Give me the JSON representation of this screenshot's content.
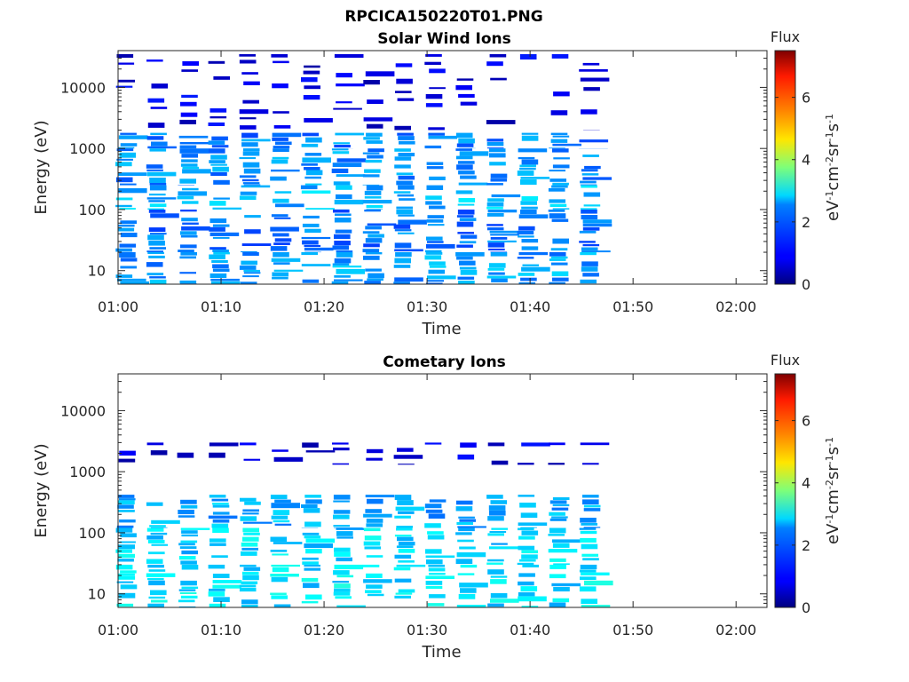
{
  "figure": {
    "title": "RPCICA150220T01.PNG"
  },
  "chart_data": [
    {
      "type": "heatmap",
      "title": "Solar Wind Ions",
      "xlabel": "Time",
      "ylabel": "Energy (eV)",
      "x_ticks": [
        "01:00",
        "01:10",
        "01:20",
        "01:30",
        "01:40",
        "01:50",
        "02:00"
      ],
      "y_ticks": [
        "10",
        "100",
        "1000",
        "10000"
      ],
      "y_scale": "log",
      "ylim": [
        6,
        40000
      ],
      "xlim_minutes": [
        0,
        63
      ],
      "colorbar": {
        "title": "Flux",
        "label": "eV-1cm-2sr-1s-1",
        "ticks": [
          "0",
          "2",
          "4",
          "6"
        ],
        "range": [
          0,
          7.5
        ],
        "colormap": "jet"
      },
      "grid": false,
      "sweep_times_minutes": [
        0.8,
        3.8,
        6.8,
        9.8,
        12.8,
        15.8,
        18.8,
        21.8,
        24.8,
        27.8,
        30.8,
        33.8,
        36.8,
        39.8,
        42.8,
        45.8
      ],
      "sweep_width_minutes": 1.6,
      "data_end_minutes": 46,
      "flux_profile": [
        [
          35000,
          2000,
          0.7
        ],
        [
          1800,
          1000,
          1.9
        ],
        [
          1000,
          250,
          2.0
        ],
        [
          250,
          100,
          2.3
        ],
        [
          100,
          20,
          1.8
        ],
        [
          20,
          6,
          2.1
        ]
      ]
    },
    {
      "type": "heatmap",
      "title": "Cometary Ions",
      "xlabel": "Time",
      "ylabel": "Energy (eV)",
      "x_ticks": [
        "01:00",
        "01:10",
        "01:20",
        "01:30",
        "01:40",
        "01:50",
        "02:00"
      ],
      "y_ticks": [
        "10",
        "100",
        "1000",
        "10000"
      ],
      "y_scale": "log",
      "ylim": [
        6,
        40000
      ],
      "xlim_minutes": [
        0,
        63
      ],
      "colorbar": {
        "title": "Flux",
        "label": "eV-1cm-2sr-1s-1",
        "ticks": [
          "0",
          "2",
          "4",
          "6"
        ],
        "range": [
          0,
          7.5
        ],
        "colormap": "jet"
      },
      "grid": false,
      "sweep_times_minutes": [
        0.8,
        3.8,
        6.8,
        9.8,
        12.8,
        15.8,
        18.8,
        21.8,
        24.8,
        27.8,
        30.8,
        33.8,
        36.8,
        39.8,
        42.8,
        45.8
      ],
      "sweep_width_minutes": 1.6,
      "data_end_minutes": 46,
      "flux_profile": [
        [
          3000,
          1300,
          0.7
        ],
        [
          420,
          120,
          2.2
        ],
        [
          120,
          30,
          2.5
        ],
        [
          30,
          6,
          2.6
        ]
      ]
    }
  ]
}
